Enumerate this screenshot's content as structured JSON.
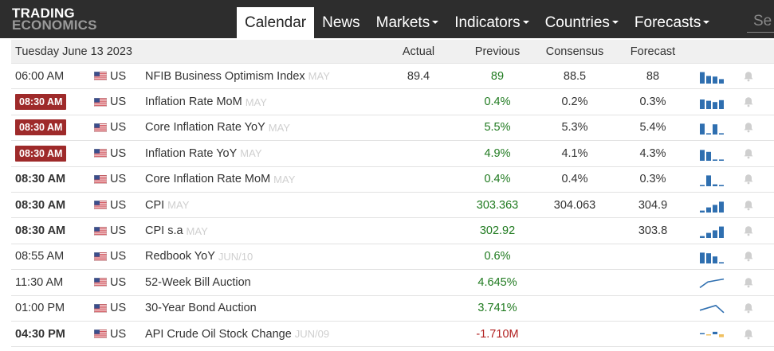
{
  "brand": {
    "line1": "TRADING",
    "line2": "ECONOMICS"
  },
  "nav": [
    {
      "label": "Calendar",
      "active": true,
      "dropdown": false
    },
    {
      "label": "News",
      "active": false,
      "dropdown": false
    },
    {
      "label": "Markets",
      "active": false,
      "dropdown": true
    },
    {
      "label": "Indicators",
      "active": false,
      "dropdown": true
    },
    {
      "label": "Countries",
      "active": false,
      "dropdown": true
    },
    {
      "label": "Forecasts",
      "active": false,
      "dropdown": true
    }
  ],
  "search": {
    "placeholder": "Se"
  },
  "table": {
    "date_label": "Tuesday June 13 2023",
    "columns": {
      "actual": "Actual",
      "previous": "Previous",
      "consensus": "Consensus",
      "forecast": "Forecast"
    },
    "accent_colors": {
      "badge": "#9e2a2a",
      "previous": "#1f7a1f",
      "negative": "#b22222",
      "spark": "#2f6fb0"
    },
    "rows": [
      {
        "time": "06:00 AM",
        "style": "normal",
        "country": "US",
        "event": "NFIB Business Optimism Index",
        "ref": "MAY",
        "actual": "89.4",
        "previous": "89",
        "consensus": "88.5",
        "forecast": "88",
        "spark": "bars",
        "levels": [
          0.9,
          0.6,
          0.55,
          0.35
        ]
      },
      {
        "time": "08:30 AM",
        "style": "badge",
        "country": "US",
        "event": "Inflation Rate MoM",
        "ref": "MAY",
        "actual": "",
        "previous": "0.4%",
        "consensus": "0.2%",
        "forecast": "0.3%",
        "spark": "bars",
        "levels": [
          0.75,
          0.65,
          0.55,
          0.7
        ]
      },
      {
        "time": "08:30 AM",
        "style": "badge",
        "country": "US",
        "event": "Core Inflation Rate YoY",
        "ref": "MAY",
        "actual": "",
        "previous": "5.5%",
        "consensus": "5.3%",
        "forecast": "5.4%",
        "spark": "bars",
        "levels": [
          0.85,
          0.1,
          0.8,
          0.1
        ]
      },
      {
        "time": "08:30 AM",
        "style": "badge",
        "country": "US",
        "event": "Inflation Rate YoY",
        "ref": "MAY",
        "actual": "",
        "previous": "4.9%",
        "consensus": "4.1%",
        "forecast": "4.3%",
        "spark": "bars",
        "levels": [
          0.85,
          0.7,
          0.1,
          0.1
        ]
      },
      {
        "time": "08:30 AM",
        "style": "bold",
        "country": "US",
        "event": "Core Inflation Rate MoM",
        "ref": "MAY",
        "actual": "",
        "previous": "0.4%",
        "consensus": "0.4%",
        "forecast": "0.3%",
        "spark": "bars",
        "levels": [
          0.1,
          0.85,
          0.15,
          0.1
        ]
      },
      {
        "time": "08:30 AM",
        "style": "bold",
        "country": "US",
        "event": "CPI",
        "ref": "MAY",
        "actual": "",
        "previous": "303.363",
        "consensus": "304.063",
        "forecast": "304.9",
        "spark": "bars",
        "levels": [
          0.15,
          0.4,
          0.6,
          0.85
        ]
      },
      {
        "time": "08:30 AM",
        "style": "bold",
        "country": "US",
        "event": "CPI s.a",
        "ref": "MAY",
        "actual": "",
        "previous": "302.92",
        "consensus": "",
        "forecast": "303.8",
        "spark": "bars",
        "levels": [
          0.15,
          0.4,
          0.6,
          0.9
        ]
      },
      {
        "time": "08:55 AM",
        "style": "normal",
        "country": "US",
        "event": "Redbook YoY",
        "ref": "JUN/10",
        "actual": "",
        "previous": "0.6%",
        "consensus": "",
        "forecast": "",
        "spark": "bars",
        "levels": [
          0.85,
          0.8,
          0.55,
          0.1
        ]
      },
      {
        "time": "11:30 AM",
        "style": "normal",
        "country": "US",
        "event": "52-Week Bill Auction",
        "ref": "",
        "actual": "",
        "previous": "4.645%",
        "consensus": "",
        "forecast": "",
        "spark": "line",
        "levels": [
          0.05,
          0.65,
          0.8,
          0.95
        ]
      },
      {
        "time": "01:00 PM",
        "style": "normal",
        "country": "US",
        "event": "30-Year Bond Auction",
        "ref": "",
        "actual": "",
        "previous": "3.741%",
        "consensus": "",
        "forecast": "",
        "spark": "line",
        "levels": [
          0.35,
          0.6,
          0.85,
          0.1
        ]
      },
      {
        "time": "04:30 PM",
        "style": "bold",
        "country": "US",
        "event": "API Crude Oil Stock Change",
        "ref": "JUN/09",
        "actual": "",
        "previous": "-1.710M",
        "previous_negative": true,
        "consensus": "",
        "forecast": "",
        "spark": "mixed",
        "levels": [
          0.15,
          -0.05,
          0.35,
          -0.4
        ]
      }
    ]
  }
}
